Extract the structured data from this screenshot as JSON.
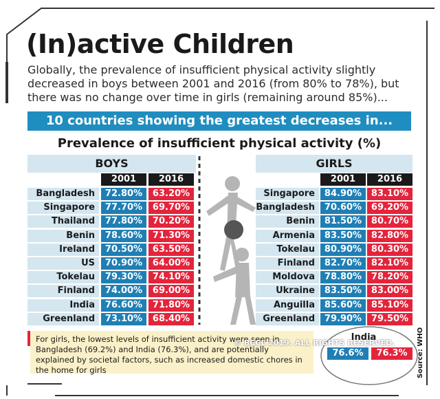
{
  "title": "(In)active Children",
  "intro": "Globally, the prevalence of insufficient physical activity slightly decreased in boys between 2001 and 2016 (from 80% to 78%), but there was no change over time in girls (remaining around 85%)...",
  "banner": "10 countries showing the greatest decreases in...",
  "subtitle": "Prevalence of insufficient physical activity (%)",
  "colors": {
    "blue": "#1f7fb5",
    "red": "#e3243b",
    "header": "#1f8dbf",
    "light": "#d4e6ef",
    "note_bg": "#fbf1c9"
  },
  "chart_data": [
    {
      "type": "table",
      "title": "BOYS",
      "columns": [
        "2001",
        "2016"
      ],
      "rows": [
        {
          "country": "Bangladesh",
          "v2001": 72.8,
          "v2016": 63.2,
          "l2001": "72.80%",
          "l2016": "63.20%"
        },
        {
          "country": "Singapore",
          "v2001": 77.7,
          "v2016": 69.7,
          "l2001": "77.70%",
          "l2016": "69.70%"
        },
        {
          "country": "Thailand",
          "v2001": 77.8,
          "v2016": 70.2,
          "l2001": "77.80%",
          "l2016": "70.20%"
        },
        {
          "country": "Benin",
          "v2001": 78.6,
          "v2016": 71.3,
          "l2001": "78.60%",
          "l2016": "71.30%"
        },
        {
          "country": "Ireland",
          "v2001": 70.5,
          "v2016": 63.5,
          "l2001": "70.50%",
          "l2016": "63.50%"
        },
        {
          "country": "US",
          "v2001": 70.9,
          "v2016": 64.0,
          "l2001": "70.90%",
          "l2016": "64.00%"
        },
        {
          "country": "Tokelau",
          "v2001": 79.3,
          "v2016": 74.1,
          "l2001": "79.30%",
          "l2016": "74.10%"
        },
        {
          "country": "Finland",
          "v2001": 74.0,
          "v2016": 69.0,
          "l2001": "74.00%",
          "l2016": "69.00%"
        },
        {
          "country": "India",
          "v2001": 76.6,
          "v2016": 71.8,
          "l2001": "76.60%",
          "l2016": "71.80%"
        },
        {
          "country": "Greenland",
          "v2001": 73.1,
          "v2016": 68.4,
          "l2001": "73.10%",
          "l2016": "68.40%"
        }
      ]
    },
    {
      "type": "table",
      "title": "GIRLS",
      "columns": [
        "2001",
        "2016"
      ],
      "rows": [
        {
          "country": "Singapore",
          "v2001": 84.9,
          "v2016": 83.1,
          "l2001": "84.90%",
          "l2016": "83.10%"
        },
        {
          "country": "Bangladesh",
          "v2001": 70.6,
          "v2016": 69.2,
          "l2001": "70.60%",
          "l2016": "69.20%"
        },
        {
          "country": "Benin",
          "v2001": 81.5,
          "v2016": 80.7,
          "l2001": "81.50%",
          "l2016": "80.70%"
        },
        {
          "country": "Armenia",
          "v2001": 83.5,
          "v2016": 82.8,
          "l2001": "83.50%",
          "l2016": "82.80%"
        },
        {
          "country": "Tokelau",
          "v2001": 80.9,
          "v2016": 80.3,
          "l2001": "80.90%",
          "l2016": "80.30%"
        },
        {
          "country": "Finland",
          "v2001": 82.7,
          "v2016": 82.1,
          "l2001": "82.70%",
          "l2016": "82.10%"
        },
        {
          "country": "Moldova",
          "v2001": 78.8,
          "v2016": 78.2,
          "l2001": "78.80%",
          "l2016": "78.20%"
        },
        {
          "country": "Ukraine",
          "v2001": 83.5,
          "v2016": 83.0,
          "l2001": "83.50%",
          "l2016": "83.00%"
        },
        {
          "country": "Anguilla",
          "v2001": 85.6,
          "v2016": 85.1,
          "l2001": "85.60%",
          "l2016": "85.10%"
        },
        {
          "country": "Greenland",
          "v2001": 79.9,
          "v2016": 79.5,
          "l2001": "79.90%",
          "l2016": "79.50%"
        }
      ]
    }
  ],
  "note": "For girls, the lowest levels of insufficient activity were seen in Bangladesh (69.2%) and India (76.3%), and are potentially explained by societal factors, such as increased domestic chores in the home for girls",
  "india_highlight": {
    "label": "India",
    "l2001": "76.6%",
    "l2016": "76.3%"
  },
  "watermark": "© BCCL 2019. ALL RIGHTS RESERVED.",
  "source": "Source: WHO"
}
